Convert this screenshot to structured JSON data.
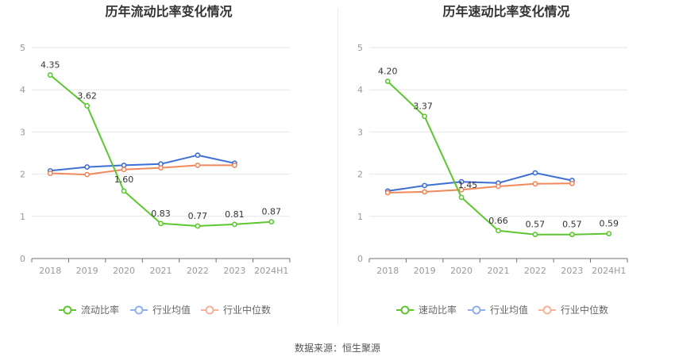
{
  "chart_data": [
    {
      "type": "line",
      "title": "历年流动比率变化情况",
      "categories": [
        "2018",
        "2019",
        "2020",
        "2021",
        "2022",
        "2023",
        "2024H1"
      ],
      "ylim": [
        0,
        5
      ],
      "yticks": [
        "0",
        "1",
        "2",
        "3",
        "4",
        "5"
      ],
      "grid": true,
      "legend_position": "bottom",
      "series": [
        {
          "name": "流动比率",
          "color": "#5dc630",
          "values": [
            4.35,
            3.62,
            1.6,
            0.83,
            0.77,
            0.81,
            0.87
          ],
          "labels": [
            "4.35",
            "3.62",
            "1.60",
            "0.83",
            "0.77",
            "0.81",
            "0.87"
          ]
        },
        {
          "name": "行业均值",
          "color": "#3f6fd5",
          "values": [
            2.08,
            2.17,
            2.21,
            2.24,
            2.45,
            2.26,
            null
          ]
        },
        {
          "name": "行业中位数",
          "color": "#f0895c",
          "values": [
            2.02,
            1.99,
            2.11,
            2.15,
            2.21,
            2.21,
            null
          ]
        }
      ]
    },
    {
      "type": "line",
      "title": "历年速动比率变化情况",
      "categories": [
        "2018",
        "2019",
        "2020",
        "2021",
        "2022",
        "2023",
        "2024H1"
      ],
      "ylim": [
        0,
        5
      ],
      "yticks": [
        "0",
        "1",
        "2",
        "3",
        "4",
        "5"
      ],
      "grid": true,
      "legend_position": "bottom",
      "series": [
        {
          "name": "速动比率",
          "color": "#5dc630",
          "values": [
            4.2,
            3.37,
            1.45,
            0.66,
            0.57,
            0.57,
            0.59
          ],
          "labels": [
            "4.20",
            "3.37",
            "1.45",
            "0.66",
            "0.57",
            "0.57",
            "0.59"
          ]
        },
        {
          "name": "行业均值",
          "color": "#3f6fd5",
          "values": [
            1.6,
            1.73,
            1.82,
            1.79,
            2.03,
            1.85,
            null
          ]
        },
        {
          "name": "行业中位数",
          "color": "#f0895c",
          "values": [
            1.56,
            1.58,
            1.63,
            1.71,
            1.77,
            1.78,
            null
          ]
        }
      ]
    }
  ],
  "legend_colors": {
    "main": "#5dc630",
    "avg": "#8fb0ea",
    "median": "#f5b49a"
  },
  "footer": {
    "source": "数据来源：恒生聚源"
  }
}
